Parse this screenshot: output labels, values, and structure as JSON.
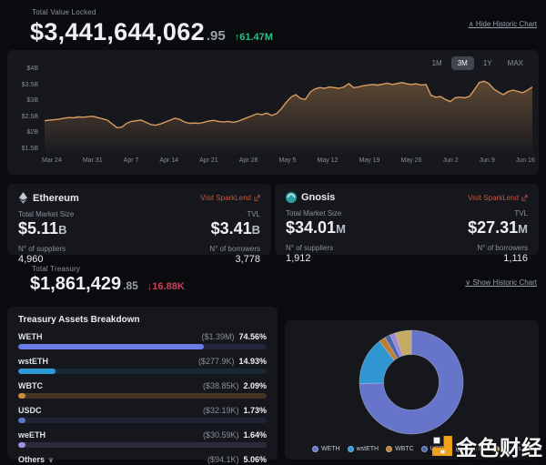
{
  "header": {
    "tvl_label": "Total Value Locked",
    "tvl_value_int": "$3,441,644,062",
    "tvl_value_dec": ".95",
    "tvl_change": "↑61.47M",
    "toggle_chart_label": "∧ Hide Historic Chart"
  },
  "tvl_chart": {
    "ranges": [
      "1M",
      "3M",
      "1Y",
      "MAX"
    ],
    "selected_range": "3M",
    "line_color": "#d89c5f",
    "fill_top": "rgba(197,141,83,0.40)",
    "fill_bottom": "rgba(197,141,83,0.02)"
  },
  "networks": [
    {
      "name": "Ethereum",
      "link_label": "Visit SparkLend",
      "market_size_label": "Total Market Size",
      "market_size": "$5.11",
      "market_size_suffix": "B",
      "tvl_label": "TVL",
      "tvl": "$3.41",
      "tvl_suffix": "B",
      "suppliers_label": "N° of suppliers",
      "suppliers": "4,960",
      "borrowers_label": "N° of borrowers",
      "borrowers": "3,778"
    },
    {
      "name": "Gnosis",
      "link_label": "Visit SparkLend",
      "market_size_label": "Total Market Size",
      "market_size": "$34.01",
      "market_size_suffix": "M",
      "tvl_label": "TVL",
      "tvl": "$27.31",
      "tvl_suffix": "M",
      "suppliers_label": "N° of suppliers",
      "suppliers": "1,912",
      "borrowers_label": "N° of borrowers",
      "borrowers": "1,116"
    }
  ],
  "treasury": {
    "label": "Total Treasury",
    "value_int": "$1,861,429",
    "value_dec": ".85",
    "change": "↓16.88K",
    "toggle_chart_label": "∨ Show Historic Chart"
  },
  "breakdown": {
    "title": "Treasury Assets Breakdown",
    "others_chevron": "∨"
  },
  "watermark": {
    "text": "金色财经"
  },
  "chart_data": [
    {
      "type": "area",
      "title": "Total Value Locked history (3M)",
      "x_ticks": [
        "Mar 24",
        "Mar 31",
        "Apr 7",
        "Apr 14",
        "Apr 21",
        "Apr 28",
        "May 5",
        "May 12",
        "May 19",
        "May 26",
        "Jun 2",
        "Jun 9",
        "Jun 16"
      ],
      "y_ticks": [
        "$4B",
        "$3.5B",
        "$3B",
        "$2.5B",
        "$2B",
        "$1.5B"
      ],
      "ylim": [
        1.5,
        4.0
      ],
      "unit": "USD billions",
      "values": [
        2.38,
        2.4,
        2.41,
        2.43,
        2.46,
        2.48,
        2.47,
        2.5,
        2.49,
        2.51,
        2.52,
        2.48,
        2.44,
        2.4,
        2.28,
        2.16,
        2.18,
        2.3,
        2.36,
        2.38,
        2.4,
        2.33,
        2.26,
        2.24,
        2.28,
        2.34,
        2.4,
        2.46,
        2.42,
        2.34,
        2.3,
        2.31,
        2.3,
        2.33,
        2.37,
        2.39,
        2.36,
        2.34,
        2.36,
        2.33,
        2.36,
        2.42,
        2.48,
        2.54,
        2.6,
        2.57,
        2.62,
        2.55,
        2.6,
        2.75,
        2.95,
        3.12,
        3.2,
        3.08,
        3.05,
        3.28,
        3.38,
        3.42,
        3.4,
        3.44,
        3.42,
        3.4,
        3.44,
        3.55,
        3.42,
        3.44,
        3.48,
        3.5,
        3.52,
        3.5,
        3.53,
        3.56,
        3.52,
        3.55,
        3.58,
        3.54,
        3.52,
        3.54,
        3.5,
        3.52,
        3.18,
        3.12,
        3.14,
        3.05,
        2.98,
        3.1,
        3.12,
        3.1,
        3.15,
        3.35,
        3.58,
        3.62,
        3.55,
        3.38,
        3.28,
        3.2,
        3.3,
        3.34,
        3.3,
        3.26,
        3.34,
        3.44
      ]
    },
    {
      "type": "donut",
      "title": "Treasury Assets Breakdown",
      "categories": [
        "WETH",
        "wstETH",
        "WBTC",
        "USDC",
        "weETH",
        "Others"
      ],
      "values": [
        74.56,
        14.93,
        2.09,
        1.73,
        1.64,
        5.06
      ],
      "amounts": [
        "($1.39M)",
        "($277.9K)",
        "($38.85K)",
        "($32.19K)",
        "($30.59K)",
        "($94.1K)"
      ],
      "donut_colors": [
        "#6674c9",
        "#2f96d2",
        "#bf7e33",
        "#4a66ae",
        "#9f87d9",
        "#c4aa62"
      ],
      "bar_colors": [
        "#6b7ce8",
        "#2e9ad6",
        "#cd8a3f",
        "#5b78c7",
        "#a58fe3",
        "#ead06e"
      ],
      "bar_tracks": [
        "rgba(100,120,220,0.16)",
        "rgba(46,154,214,0.14)",
        "rgba(200,135,60,0.26)",
        "rgba(85,115,195,0.16)",
        "rgba(165,143,227,0.16)",
        "rgba(225,200,105,0.28)"
      ],
      "legend_position": "bottom"
    }
  ]
}
